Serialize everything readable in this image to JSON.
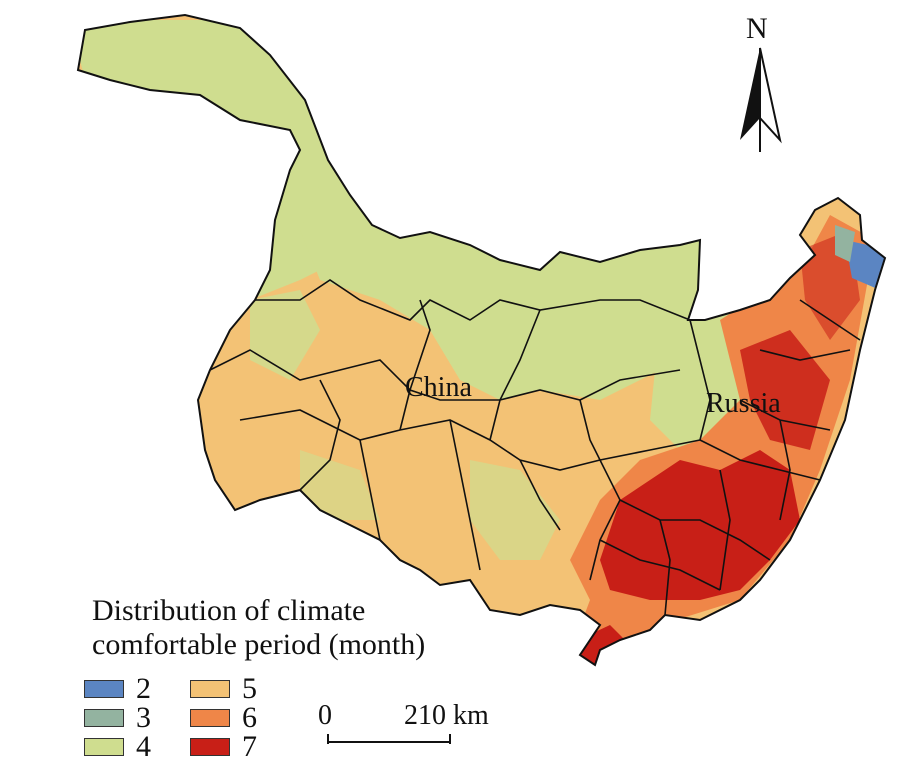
{
  "labels": {
    "china": "China",
    "russia": "Russia"
  },
  "north_arrow": {
    "letter": "N"
  },
  "legend": {
    "title_line1": "Distribution of climate",
    "title_line2": "comfortable period (month)",
    "classes": [
      {
        "value": "2",
        "color": "#5b85c2"
      },
      {
        "value": "3",
        "color": "#93b3a0"
      },
      {
        "value": "4",
        "color": "#cfdd8f"
      },
      {
        "value": "5",
        "color": "#f3c275"
      },
      {
        "value": "6",
        "color": "#ef8648"
      },
      {
        "value": "7",
        "color": "#c81f17"
      }
    ]
  },
  "scale_bar": {
    "start_label": "0",
    "end_label": "210 km"
  }
}
